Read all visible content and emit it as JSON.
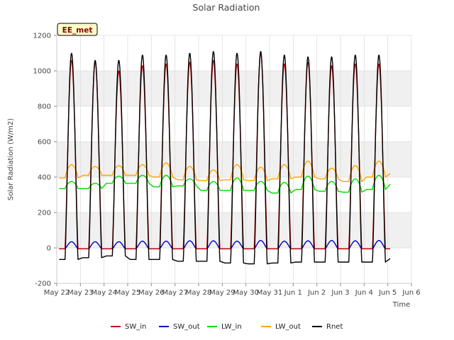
{
  "chart_data": {
    "type": "line",
    "title": "Solar Radiation",
    "xlabel": "Time",
    "ylabel": "Solar Radiation (W/m2)",
    "site_badge": "EE_met",
    "ylim": [
      -200,
      1200
    ],
    "yticks": [
      -200,
      0,
      200,
      400,
      600,
      800,
      1000,
      1200
    ],
    "xlim": [
      0,
      15
    ],
    "xticks": [
      {
        "x": 0,
        "label": "May 22"
      },
      {
        "x": 1,
        "label": "May 23"
      },
      {
        "x": 2,
        "label": "May 24"
      },
      {
        "x": 3,
        "label": "May 25"
      },
      {
        "x": 4,
        "label": "May 26"
      },
      {
        "x": 5,
        "label": "May 27"
      },
      {
        "x": 6,
        "label": "May 28"
      },
      {
        "x": 7,
        "label": "May 29"
      },
      {
        "x": 8,
        "label": "May 30"
      },
      {
        "x": 9,
        "label": "May 31"
      },
      {
        "x": 10,
        "label": "Jun 1"
      },
      {
        "x": 11,
        "label": "Jun 2"
      },
      {
        "x": 12,
        "label": "Jun 3"
      },
      {
        "x": 13,
        "label": "Jun 4"
      },
      {
        "x": 14,
        "label": "Jun 5"
      },
      {
        "x": 15,
        "label": "Jun 6"
      }
    ],
    "grid": true,
    "legend_position": "bottom",
    "days": [
      "May 22",
      "May 23",
      "May 24",
      "May 25",
      "May 26",
      "May 27",
      "May 28",
      "May 29",
      "May 30",
      "May 31",
      "Jun 1",
      "Jun 2",
      "Jun 3",
      "Jun 4",
      "Jun 5"
    ],
    "series": [
      {
        "name": "SW_in",
        "color": "#cc0000",
        "daily_peak": [
          1060,
          1050,
          1000,
          1030,
          1040,
          1050,
          1060,
          1040,
          1100,
          1040,
          1050,
          1030,
          1040,
          1040
        ],
        "night_value": -5
      },
      {
        "name": "SW_out",
        "color": "#0000cc",
        "daily_peak": [
          35,
          35,
          35,
          38,
          38,
          40,
          40,
          38,
          42,
          38,
          40,
          42,
          40,
          42
        ],
        "night_value": -5
      },
      {
        "name": "LW_in",
        "color": "#00dd00",
        "night_value": [
          335,
          335,
          365,
          365,
          345,
          350,
          325,
          325,
          325,
          310,
          330,
          320,
          315,
          330,
          360
        ],
        "daily_peak": [
          375,
          365,
          405,
          410,
          410,
          390,
          375,
          395,
          375,
          370,
          405,
          375,
          390,
          410
        ]
      },
      {
        "name": "LW_out",
        "color": "#ffa500",
        "night_value": [
          395,
          410,
          410,
          410,
          400,
          385,
          380,
          385,
          380,
          390,
          400,
          390,
          375,
          400,
          420
        ],
        "daily_peak": [
          470,
          460,
          465,
          470,
          480,
          460,
          440,
          470,
          455,
          470,
          490,
          450,
          465,
          490
        ]
      },
      {
        "name": "Rnet",
        "color": "#000000",
        "daily_peak": [
          1100,
          1060,
          1060,
          1090,
          1090,
          1100,
          1110,
          1100,
          1110,
          1090,
          1080,
          1080,
          1090,
          1090
        ],
        "night_value": [
          -65,
          -55,
          -45,
          -65,
          -65,
          -75,
          -75,
          -85,
          -90,
          -85,
          -80,
          -80,
          -80,
          -80,
          -60
        ]
      }
    ]
  }
}
